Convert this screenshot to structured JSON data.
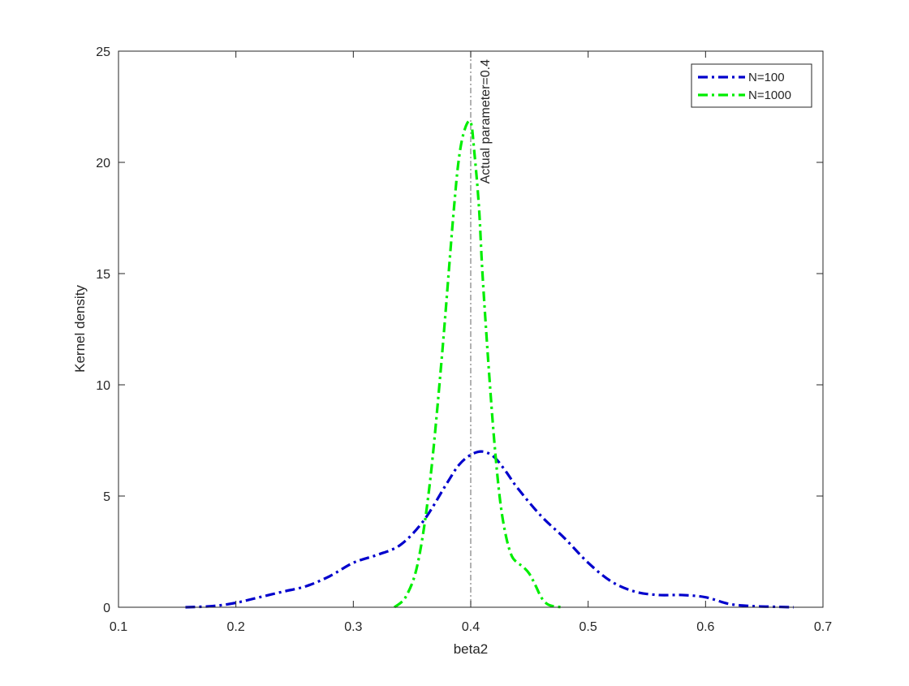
{
  "chart_data": {
    "type": "line",
    "title": "",
    "xlabel": "beta2",
    "ylabel": "Kernel density",
    "xlim": [
      0.1,
      0.7
    ],
    "ylim": [
      0,
      25
    ],
    "xticks": [
      "0.1",
      "0.2",
      "0.3",
      "0.4",
      "0.5",
      "0.6",
      "0.7"
    ],
    "yticks": [
      "0",
      "5",
      "10",
      "15",
      "20",
      "25"
    ],
    "grid": false,
    "legend_position": "top-right",
    "reference_line": {
      "x": 0.4,
      "label": "Actual parameter=0.4",
      "style": "dash-dot",
      "color": "#808080"
    },
    "series": [
      {
        "name": "N=100",
        "color": "#0000CC",
        "style": "dash-dot",
        "x": [
          0.157,
          0.18,
          0.2,
          0.22,
          0.24,
          0.26,
          0.28,
          0.3,
          0.32,
          0.34,
          0.36,
          0.38,
          0.39,
          0.4,
          0.41,
          0.42,
          0.43,
          0.44,
          0.46,
          0.48,
          0.5,
          0.52,
          0.54,
          0.56,
          0.58,
          0.6,
          0.62,
          0.64,
          0.66,
          0.675
        ],
        "y": [
          0.0,
          0.05,
          0.2,
          0.45,
          0.7,
          0.95,
          1.4,
          2.0,
          2.35,
          2.8,
          3.9,
          5.6,
          6.4,
          6.85,
          7.0,
          6.75,
          6.1,
          5.35,
          4.1,
          3.1,
          2.0,
          1.15,
          0.7,
          0.55,
          0.55,
          0.45,
          0.15,
          0.05,
          0.02,
          0.0
        ]
      },
      {
        "name": "N=1000",
        "color": "#00EE00",
        "style": "dash-dot",
        "x": [
          0.335,
          0.345,
          0.355,
          0.365,
          0.375,
          0.385,
          0.39,
          0.395,
          0.4,
          0.403,
          0.407,
          0.41,
          0.415,
          0.42,
          0.425,
          0.43,
          0.435,
          0.44,
          0.445,
          0.45,
          0.455,
          0.46,
          0.465,
          0.47,
          0.478
        ],
        "y": [
          0.0,
          0.5,
          2.0,
          5.5,
          11.0,
          17.5,
          20.2,
          21.5,
          21.8,
          20.5,
          18.0,
          15.0,
          11.0,
          7.5,
          4.8,
          3.2,
          2.3,
          2.0,
          1.8,
          1.5,
          1.0,
          0.45,
          0.15,
          0.05,
          0.0
        ]
      }
    ]
  }
}
